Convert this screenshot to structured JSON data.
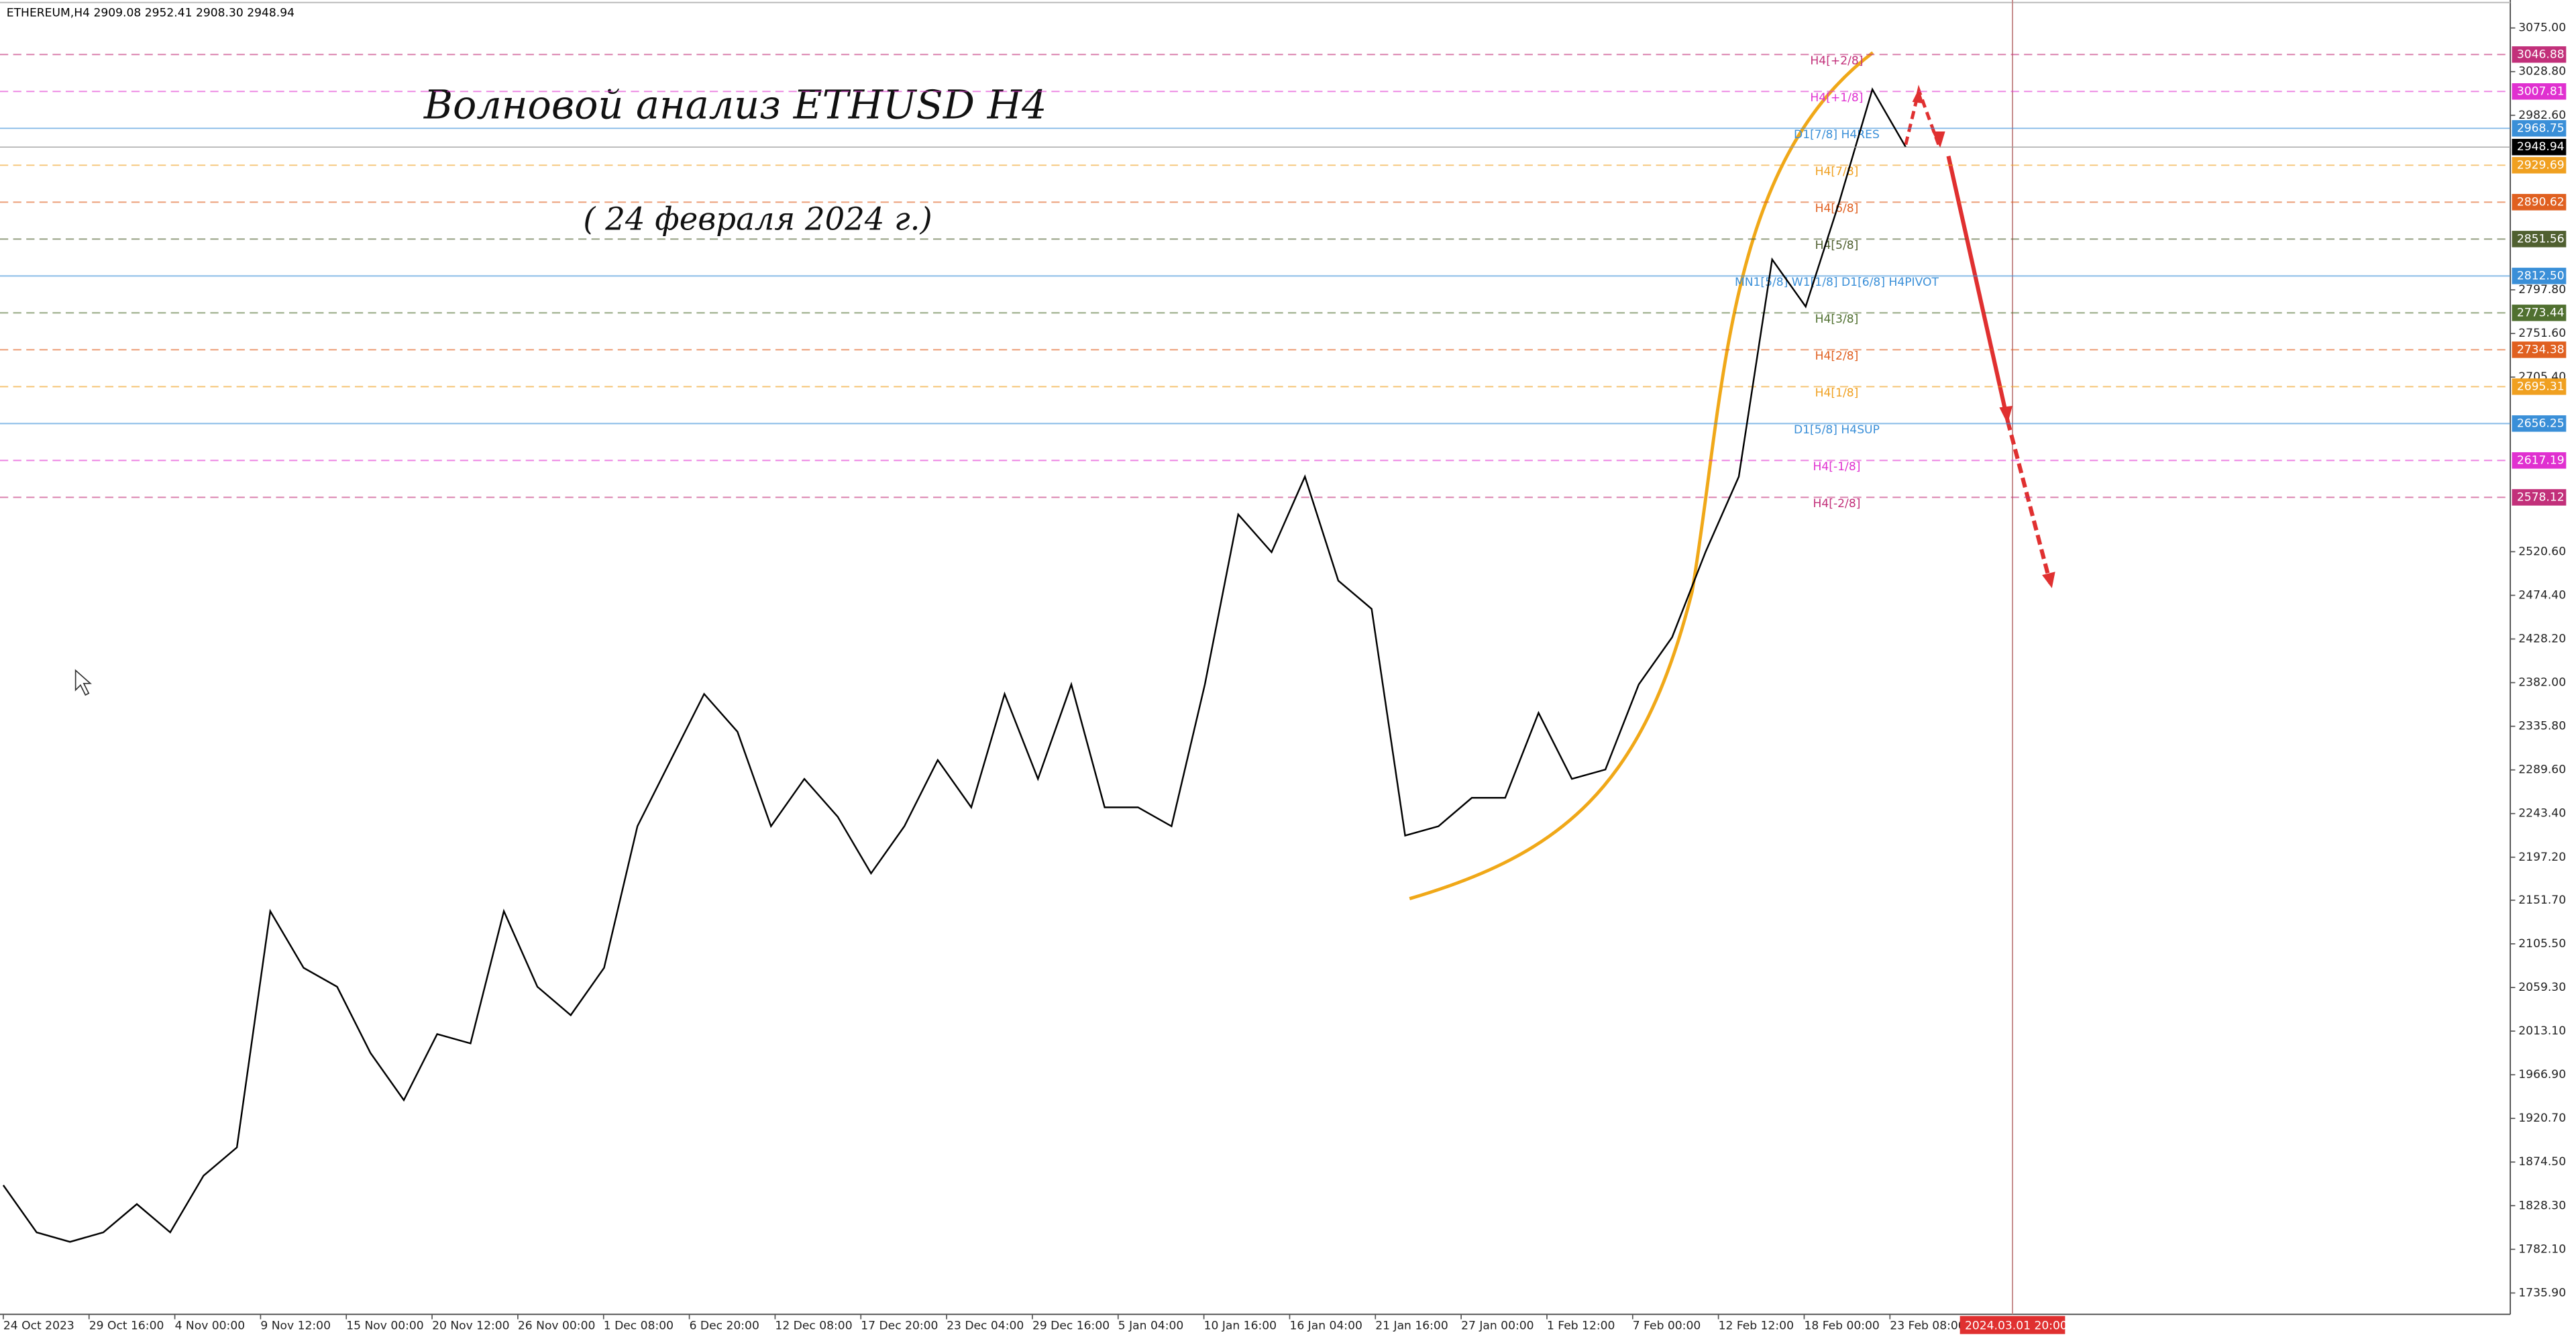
{
  "chart_data": {
    "type": "line",
    "header": "ETHEREUM,H4  2909.08 2952.41 2908.30 2948.94",
    "title": "Волновой анализ ETHUSD H4",
    "subtitle": "( 24 февраля 2024 г.)",
    "x_labels": [
      "24 Oct 2023",
      "29 Oct 16:00",
      "4 Nov 00:00",
      "9 Nov 12:00",
      "15 Nov 00:00",
      "20 Nov 12:00",
      "26 Nov 00:00",
      "1 Dec 08:00",
      "6 Dec 20:00",
      "12 Dec 08:00",
      "17 Dec 20:00",
      "23 Dec 04:00",
      "29 Dec 16:00",
      "5 Jan 04:00",
      "10 Jan 16:00",
      "16 Jan 04:00",
      "21 Jan 16:00",
      "27 Jan 00:00",
      "1 Feb 12:00",
      "7 Feb 00:00",
      "12 Feb 12:00",
      "18 Feb 00:00",
      "23 Feb 08:00"
    ],
    "cursor_time": "2024.03.01 20:00",
    "series": [
      {
        "name": "ETHEREUM,H4",
        "color": "#000000",
        "values": [
          1850,
          1800,
          1790,
          1800,
          1830,
          1800,
          1860,
          1890,
          2140,
          2080,
          2060,
          1990,
          1940,
          2010,
          2000,
          2140,
          2060,
          2030,
          2080,
          2230,
          2300,
          2370,
          2330,
          2230,
          2280,
          2240,
          2180,
          2230,
          2300,
          2250,
          2370,
          2280,
          2380,
          2250,
          2250,
          2230,
          2380,
          2560,
          2520,
          2600,
          2490,
          2460,
          2220,
          2230,
          2260,
          2260,
          2350,
          2280,
          2290,
          2380,
          2430,
          2520,
          2600,
          2830,
          2780,
          2890,
          3010,
          2948.94
        ]
      }
    ],
    "current_price": 2948.94,
    "levels": [
      {
        "name": "H4[+2/8]",
        "value": 3046.88,
        "color": "#c2307a"
      },
      {
        "name": "H4[+1/8]",
        "value": 3007.81,
        "color": "#e030d0"
      },
      {
        "name": "D1[7/8] H4RES",
        "value": 2968.75,
        "color": "#3a8fd8"
      },
      {
        "name": "H4[7/8]",
        "value": 2929.69,
        "color": "#f0a020"
      },
      {
        "name": "H4[6/8]",
        "value": 2890.62,
        "value_label": "2890.62",
        "color": "#e06020"
      },
      {
        "name": "H4[5/8]",
        "value": 2851.56,
        "color": "#506030"
      },
      {
        "name": "MN1[5/8] W1[1/8] D1[6/8] H4PIVOT",
        "value": 2812.5,
        "value_label": "2812.50",
        "color": "#3a8fd8"
      },
      {
        "name": "H4[3/8]",
        "value": 2773.44,
        "color": "#507030"
      },
      {
        "name": "H4[2/8]",
        "value": 2734.38,
        "color": "#e06020"
      },
      {
        "name": "H4[1/8]",
        "value": 2695.31,
        "color": "#f0a020"
      },
      {
        "name": "D1[5/8] H4SUP",
        "value": 2656.25,
        "color": "#3a8fd8"
      },
      {
        "name": "H4[-1/8]",
        "value": 2617.19,
        "color": "#e030d0"
      },
      {
        "name": "H4[-2/8]",
        "value": 2578.12,
        "color": "#c2307a"
      }
    ],
    "ylim": [
      1713.3,
      3101.1
    ],
    "yticks": [
      {
        "value": 3075,
        "label": "3075.00"
      },
      {
        "value": 3028.8,
        "label": "3028.80"
      },
      {
        "value": 2982.6,
        "label": "2982.60"
      },
      {
        "value": 2797.8,
        "label": "2797.80"
      },
      {
        "value": 2751.6,
        "label": "2751.60"
      },
      {
        "value": 2705.4,
        "label": "2705.40"
      },
      {
        "value": 2520.6,
        "label": "2520.60"
      },
      {
        "value": 2474.4,
        "label": "2474.40"
      },
      {
        "value": 2428.2,
        "label": "2428.20"
      },
      {
        "value": 2382,
        "label": "2382.00"
      },
      {
        "value": 2335.8,
        "label": "2335.80"
      },
      {
        "value": 2289.6,
        "label": "2289.60"
      },
      {
        "value": 2243.4,
        "label": "2243.40"
      },
      {
        "value": 2197.2,
        "label": "2197.20"
      },
      {
        "value": 2151.7,
        "label": "2151.70"
      },
      {
        "value": 2105.5,
        "label": "2105.50"
      },
      {
        "value": 2059.3,
        "label": "2059.30"
      },
      {
        "value": 2013.1,
        "label": "2013.10"
      },
      {
        "value": 1966.9,
        "label": "1966.90"
      },
      {
        "value": 1920.7,
        "label": "1920.70"
      },
      {
        "value": 1874.5,
        "label": "1874.50"
      },
      {
        "value": 1828.3,
        "label": "1828.30"
      },
      {
        "value": 1782.1,
        "label": "1782.10"
      },
      {
        "value": 1735.9,
        "label": "1735.90"
      }
    ]
  }
}
